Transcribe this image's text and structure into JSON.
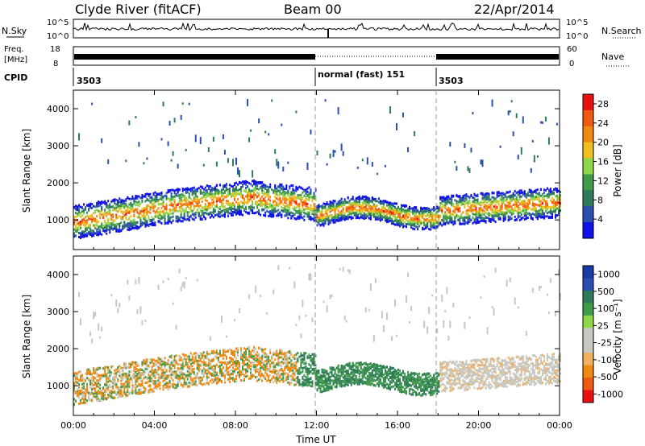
{
  "header": {
    "station": "Clyde River (fitACF)",
    "beam": "Beam 00",
    "date": "22/Apr/2014"
  },
  "status_panels": {
    "nsky": {
      "label": "N.Sky",
      "axis_top": "10^5",
      "axis_bottom": "10^0",
      "right_label": "N.Search",
      "right_axis_top": "10^5",
      "right_axis_bottom": "10^0"
    },
    "freq": {
      "label_line1": "Freq.",
      "label_line2": "[MHz]",
      "axis_top": "18",
      "axis_bottom": "8",
      "right_label": "Nave",
      "right_axis_top": "60",
      "right_axis_bottom": "0"
    },
    "cpid": {
      "label": "CPID",
      "segments": [
        "3503",
        "normal (fast) 151",
        "3503"
      ]
    }
  },
  "colors": {
    "power_scale": [
      "#1010e8",
      "#2a4fb0",
      "#2f7a5a",
      "#3f9a4a",
      "#8fd84a",
      "#f0c020",
      "#f08a10",
      "#ef5a10",
      "#e81010"
    ],
    "velocity_scale": [
      "#e81010",
      "#ef5a10",
      "#f08a10",
      "#f0b060",
      "#c8c8c0",
      "#c8c8c0",
      "#8fd84a",
      "#3f9a4a",
      "#2f7a5a",
      "#2a4fb0",
      "#1a3aa8"
    ]
  },
  "chart_data": [
    {
      "type": "heatmap",
      "id": "power",
      "ylabel": "Slant Range [km]",
      "xlabel": "",
      "x_ticks": [
        "00:00",
        "04:00",
        "08:00",
        "12:00",
        "16:00",
        "20:00",
        "00:00"
      ],
      "y_ticks": [
        1000,
        2000,
        3000,
        4000
      ],
      "ylim": [
        200,
        4500
      ],
      "xlim_hours": [
        0,
        24
      ],
      "colorbar_label": "Power [dB]",
      "colorbar_ticks": [
        "4",
        "8",
        "12",
        "16",
        "20",
        "24",
        "28"
      ],
      "colorbar_range": [
        0,
        30
      ]
    },
    {
      "type": "heatmap",
      "id": "velocity",
      "ylabel": "Slant Range [km]",
      "xlabel": "Time UT",
      "x_ticks": [
        "00:00",
        "04:00",
        "08:00",
        "12:00",
        "16:00",
        "20:00",
        "00:00"
      ],
      "y_ticks": [
        1000,
        2000,
        3000,
        4000
      ],
      "ylim": [
        200,
        4500
      ],
      "xlim_hours": [
        0,
        24
      ],
      "colorbar_label": "Velocity [m s⁻¹]",
      "colorbar_ticks": [
        "1000",
        "500",
        "100",
        "25",
        "-25",
        "-100",
        "-500",
        "-1000"
      ]
    }
  ]
}
